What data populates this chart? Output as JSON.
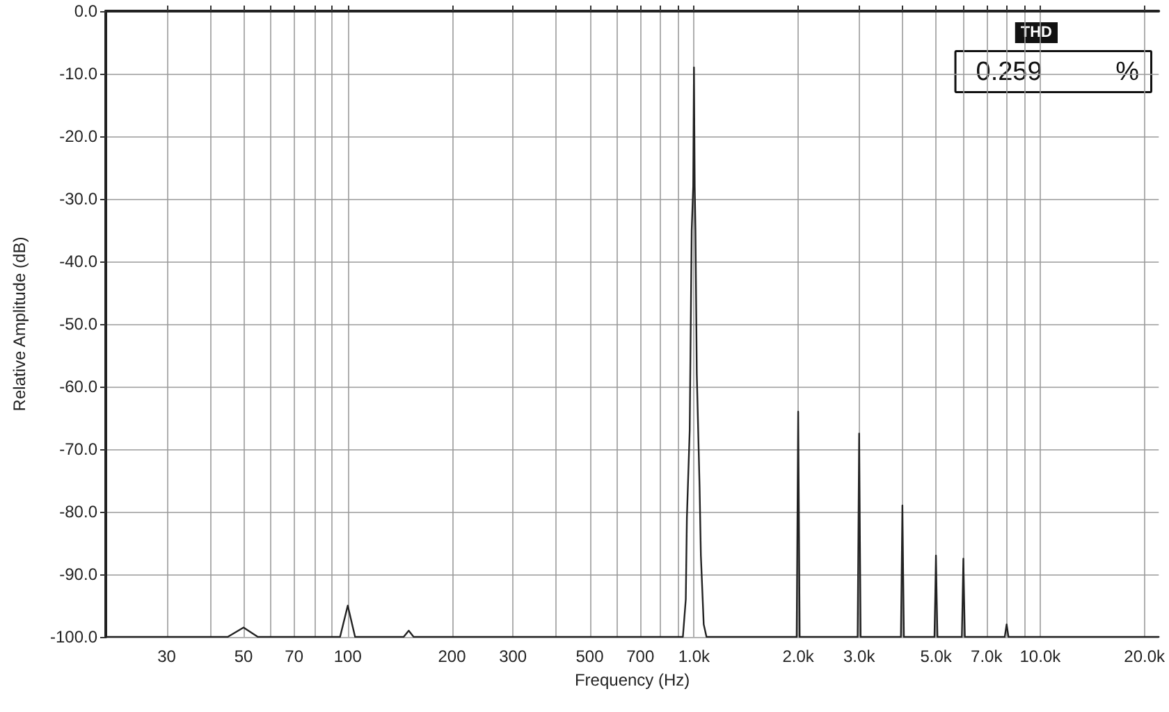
{
  "chart_data": {
    "type": "line",
    "xlabel": "Frequency (Hz)",
    "ylabel": "Relative Amplitude (dB)",
    "annotations": [
      "THD",
      "0.259 %"
    ],
    "log": "x",
    "grid": true,
    "marker": "none",
    "line_style": "solid",
    "xlim": [
      20,
      22000
    ],
    "xticks": [
      {
        "value": 30,
        "label": "30"
      },
      {
        "value": 40,
        "label": null
      },
      {
        "value": 50,
        "label": "50"
      },
      {
        "value": 60,
        "label": null
      },
      {
        "value": 70,
        "label": "70"
      },
      {
        "value": 80,
        "label": null
      },
      {
        "value": 90,
        "label": null
      },
      {
        "value": 100,
        "label": "100"
      },
      {
        "value": 200,
        "label": "200"
      },
      {
        "value": 300,
        "label": "300"
      },
      {
        "value": 400,
        "label": null
      },
      {
        "value": 500,
        "label": "500"
      },
      {
        "value": 600,
        "label": null
      },
      {
        "value": 700,
        "label": "700"
      },
      {
        "value": 800,
        "label": null
      },
      {
        "value": 900,
        "label": null
      },
      {
        "value": 1000,
        "label": "1.0k"
      },
      {
        "value": 2000,
        "label": "2.0k"
      },
      {
        "value": 3000,
        "label": "3.0k"
      },
      {
        "value": 4000,
        "label": null
      },
      {
        "value": 5000,
        "label": "5.0k"
      },
      {
        "value": 6000,
        "label": null
      },
      {
        "value": 7000,
        "label": "7.0k"
      },
      {
        "value": 8000,
        "label": null
      },
      {
        "value": 9000,
        "label": null
      },
      {
        "value": 10000,
        "label": "10.0k"
      },
      {
        "value": 20000,
        "label": "20.0k"
      }
    ],
    "ylim": [
      -100,
      0
    ],
    "yticks": [
      {
        "value": 0,
        "label": "0.0"
      },
      {
        "value": -10,
        "label": "-10.0"
      },
      {
        "value": -20,
        "label": "-20.0"
      },
      {
        "value": -30,
        "label": "-30.0"
      },
      {
        "value": -40,
        "label": "-40.0"
      },
      {
        "value": -50,
        "label": "-50.0"
      },
      {
        "value": -60,
        "label": "-60.0"
      },
      {
        "value": -70,
        "label": "-70.0"
      },
      {
        "value": -80,
        "label": "-80.0"
      },
      {
        "value": -90,
        "label": "-90.0"
      },
      {
        "value": -100,
        "label": "-100.0"
      }
    ],
    "series": [
      {
        "color": "#222222",
        "x": [
          20,
          45,
          50,
          55,
          95,
          100,
          105,
          145,
          150,
          155,
          929,
          947,
          954,
          972,
          985,
          995,
          1000,
          1005,
          1010,
          1019,
          1038,
          1047,
          1067,
          1087,
          1980,
          1990,
          2000,
          2010,
          2020,
          2970,
          2985,
          3000,
          3015,
          3030,
          3960,
          3980,
          4000,
          4020,
          4040,
          4950,
          4975,
          5000,
          5025,
          5050,
          5940,
          5970,
          6000,
          6030,
          6060,
          7900,
          8000,
          8100,
          22000
        ],
        "values": [
          -100,
          -100,
          -98.5,
          -100,
          -100,
          -95,
          -100,
          -100,
          -99,
          -100,
          -100,
          -94,
          -81,
          -67,
          -35,
          -28,
          -9,
          -28,
          -35,
          -58,
          -76,
          -87,
          -98,
          -100,
          -100,
          -82,
          -64,
          -82,
          -100,
          -100,
          -84,
          -67.5,
          -84,
          -100,
          -100,
          -90,
          -79,
          -90,
          -100,
          -100,
          -94,
          -87,
          -94,
          -100,
          -100,
          -94,
          -87.5,
          -94,
          -100,
          -100,
          -98,
          -100,
          -100
        ]
      }
    ]
  }
}
